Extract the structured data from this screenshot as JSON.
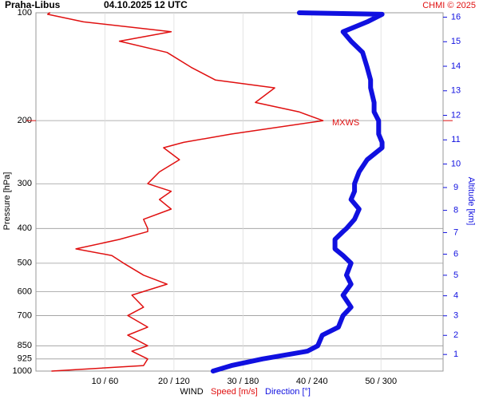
{
  "header": {
    "station": "Praha-Libus",
    "datetime": "04.10.2025 12 UTC",
    "credit": "CHMI © 2025"
  },
  "chart_data": {
    "type": "wind-profile",
    "y_label": "Pressure [hPa]",
    "y2_label": "Altitude [km]",
    "x_label": "WIND",
    "ylim": [
      1000,
      100
    ],
    "log_y": true,
    "yticks": [
      100,
      200,
      300,
      400,
      500,
      600,
      700,
      850,
      925,
      1000
    ],
    "xlim": [
      0,
      59
    ],
    "x2lim": [
      0,
      354
    ],
    "xticks": [
      {
        "value": 10,
        "label": "10 / 60"
      },
      {
        "value": 20,
        "label": "20 / 120"
      },
      {
        "value": 30,
        "label": "30 / 180"
      },
      {
        "value": 40,
        "label": "40 / 240"
      },
      {
        "value": 50,
        "label": "50 / 300"
      }
    ],
    "y2ticks": [
      1,
      2,
      3,
      4,
      5,
      6,
      7,
      8,
      9,
      10,
      11,
      12,
      13,
      14,
      15,
      16
    ],
    "grid": true,
    "pressure": [
      1000,
      965,
      925,
      880,
      850,
      794,
      754,
      700,
      663,
      614,
      572,
      540,
      500,
      476,
      456,
      429,
      408,
      400,
      377,
      353,
      332,
      315,
      300,
      278,
      257,
      238,
      230,
      218,
      200,
      189,
      178,
      162,
      154,
      142,
      129,
      120,
      113,
      106,
      101,
      100
    ],
    "series": [
      {
        "name": "Speed [m/s]",
        "color": "#e01010",
        "values": [
          2.3,
          15.6,
          16.2,
          13.9,
          16.2,
          13.3,
          16.2,
          13.3,
          15.6,
          13.9,
          19,
          15.6,
          12.7,
          11,
          5.8,
          12.1,
          16.2,
          16.2,
          15.6,
          19.6,
          17.9,
          19.6,
          16.2,
          17.9,
          20.8,
          18.5,
          21.4,
          28.3,
          41.6,
          38.1,
          31.8,
          34.6,
          26,
          22.5,
          19,
          12.1,
          19.6,
          6.9,
          1.7,
          2
        ]
      },
      {
        "name": "Direction [°]",
        "color": "#1010e0",
        "axis": "x2",
        "values": [
          154,
          170,
          197,
          236,
          245,
          249,
          263,
          267,
          274,
          267,
          274,
          270,
          274,
          267,
          260,
          260,
          267,
          270,
          277,
          281,
          274,
          277,
          277,
          281,
          288,
          301,
          301,
          298,
          298,
          294,
          294,
          291,
          291,
          288,
          284,
          274,
          267,
          288,
          301,
          229
        ]
      }
    ],
    "annotation": {
      "text": "MXWS",
      "pressure": 200
    }
  }
}
